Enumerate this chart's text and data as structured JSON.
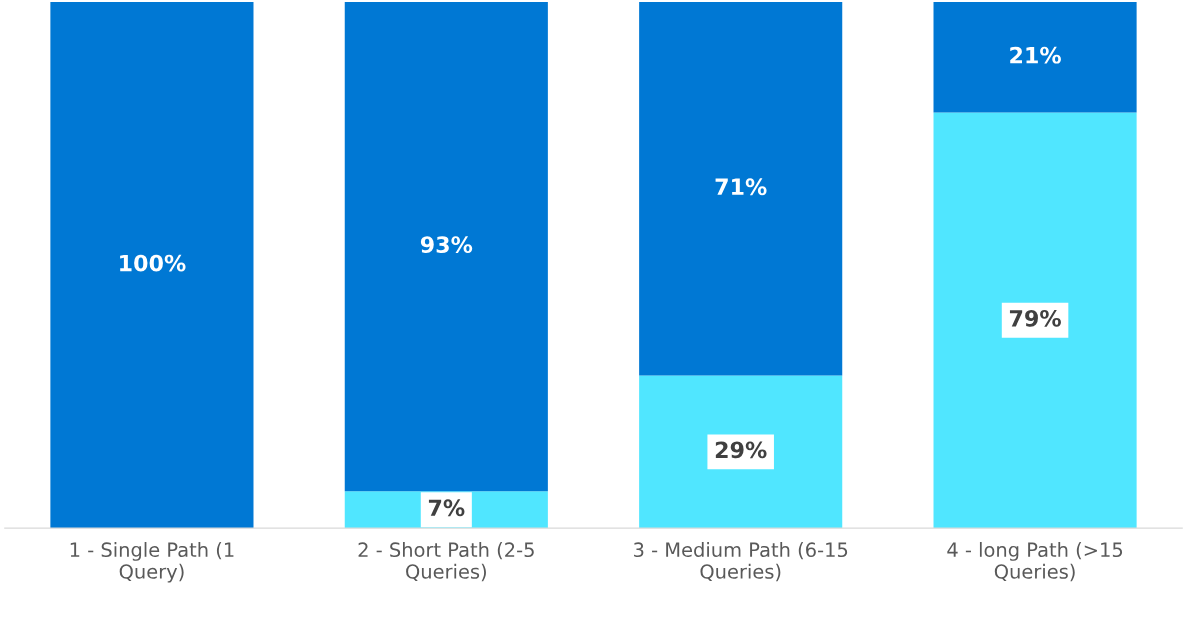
{
  "chart_data": {
    "type": "bar",
    "stacked": true,
    "categories": [
      "1 - Single Path (1 Query)",
      "2 - Short Path (2-5 Queries)",
      "3 - Medium Path (6-15 Queries)",
      "4 - long Path (>15 Queries)"
    ],
    "ylim": [
      0,
      100
    ],
    "tick_labels": "x",
    "grid": false,
    "legend": false,
    "series": [
      {
        "color": "#50e6ff",
        "values": [
          0,
          7,
          29,
          79
        ],
        "value_labels": [
          null,
          "7%",
          "29%",
          "79%"
        ]
      },
      {
        "color": "#0078d4",
        "values": [
          100,
          93,
          71,
          21
        ],
        "value_labels": [
          "100%",
          "93%",
          "71%",
          "21%"
        ]
      }
    ]
  }
}
